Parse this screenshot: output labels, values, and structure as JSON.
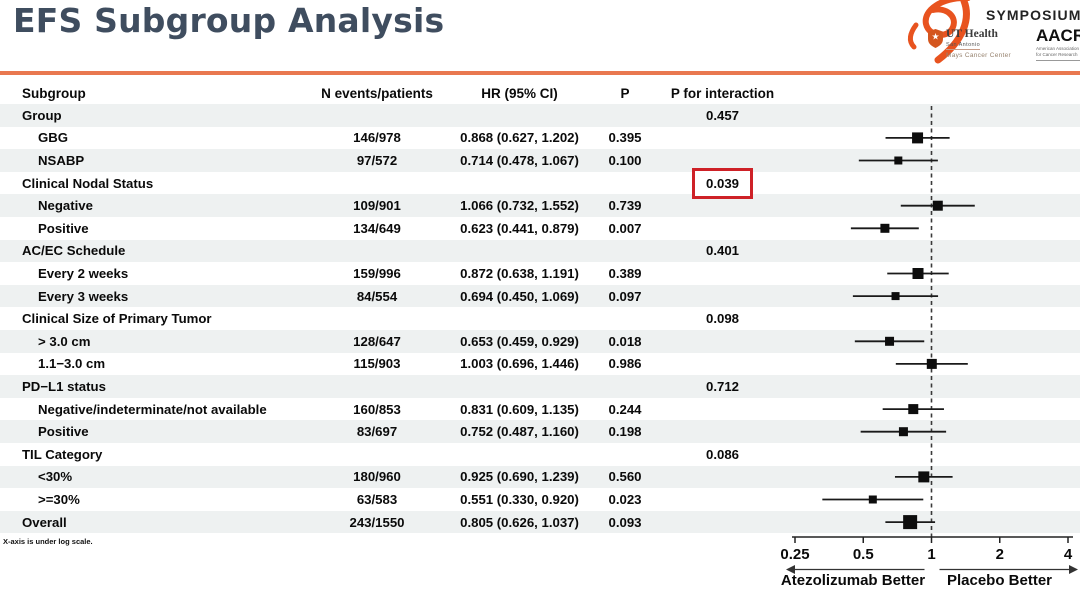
{
  "title": "EFS Subgroup Analysis",
  "footnote": "X-axis is under log scale.",
  "logos": {
    "symposium": "SYMPOSIUM®",
    "ut_health_name": "UT Health",
    "ut_health_city": "San Antonio",
    "ut_health_center": "Mays Cancer Center",
    "aacr_acronym": "AACR",
    "aacr_line1": "American Association",
    "aacr_line2": "for Cancer Research"
  },
  "colors": {
    "accent_orange": "#E97850",
    "title_navy": "#3F4D5F",
    "row_band_gray": "#EEF1F1",
    "highlight_red": "#CE2127",
    "logo_orange": "#E8531F"
  },
  "table": {
    "headers": [
      "Subgroup",
      "N events/patients",
      "HR (95% CI)",
      "P",
      "P for interaction"
    ],
    "rows": [
      {
        "label": "Group",
        "indent": false,
        "n": "",
        "hr_ci": "",
        "p": "",
        "p_int": "0.457",
        "highlight": false
      },
      {
        "label": "GBG",
        "indent": true,
        "n": "146/978",
        "hr_ci": "0.868 (0.627, 1.202)",
        "p": "0.395",
        "p_int": "",
        "highlight": false
      },
      {
        "label": "NSABP",
        "indent": true,
        "n": "97/572",
        "hr_ci": "0.714 (0.478, 1.067)",
        "p": "0.100",
        "p_int": "",
        "highlight": false
      },
      {
        "label": "Clinical Nodal Status",
        "indent": false,
        "n": "",
        "hr_ci": "",
        "p": "",
        "p_int": "0.039",
        "highlight": true
      },
      {
        "label": "Negative",
        "indent": true,
        "n": "109/901",
        "hr_ci": "1.066 (0.732, 1.552)",
        "p": "0.739",
        "p_int": "",
        "highlight": false
      },
      {
        "label": "Positive",
        "indent": true,
        "n": "134/649",
        "hr_ci": "0.623 (0.441, 0.879)",
        "p": "0.007",
        "p_int": "",
        "highlight": false
      },
      {
        "label": "AC/EC Schedule",
        "indent": false,
        "n": "",
        "hr_ci": "",
        "p": "",
        "p_int": "0.401",
        "highlight": false
      },
      {
        "label": "Every 2 weeks",
        "indent": true,
        "n": "159/996",
        "hr_ci": "0.872 (0.638, 1.191)",
        "p": "0.389",
        "p_int": "",
        "highlight": false
      },
      {
        "label": "Every 3 weeks",
        "indent": true,
        "n": "84/554",
        "hr_ci": "0.694 (0.450, 1.069)",
        "p": "0.097",
        "p_int": "",
        "highlight": false
      },
      {
        "label": "Clinical Size of Primary Tumor",
        "indent": false,
        "n": "",
        "hr_ci": "",
        "p": "",
        "p_int": "0.098",
        "highlight": false
      },
      {
        "label": "> 3.0 cm",
        "indent": true,
        "n": "128/647",
        "hr_ci": "0.653 (0.459, 0.929)",
        "p": "0.018",
        "p_int": "",
        "highlight": false
      },
      {
        "label": "1.1−3.0 cm",
        "indent": true,
        "n": "115/903",
        "hr_ci": "1.003 (0.696, 1.446)",
        "p": "0.986",
        "p_int": "",
        "highlight": false
      },
      {
        "label": "PD−L1 status",
        "indent": false,
        "n": "",
        "hr_ci": "",
        "p": "",
        "p_int": "0.712",
        "highlight": false
      },
      {
        "label": "Negative/indeterminate/not available",
        "indent": true,
        "n": "160/853",
        "hr_ci": "0.831 (0.609, 1.135)",
        "p": "0.244",
        "p_int": "",
        "highlight": false
      },
      {
        "label": "Positive",
        "indent": true,
        "n": "83/697",
        "hr_ci": "0.752 (0.487, 1.160)",
        "p": "0.198",
        "p_int": "",
        "highlight": false
      },
      {
        "label": "TIL Category",
        "indent": false,
        "n": "",
        "hr_ci": "",
        "p": "",
        "p_int": "0.086",
        "highlight": false
      },
      {
        "label": "<30%",
        "indent": true,
        "n": "180/960",
        "hr_ci": "0.925 (0.690, 1.239)",
        "p": "0.560",
        "p_int": "",
        "highlight": false
      },
      {
        "label": ">=30%",
        "indent": true,
        "n": "63/583",
        "hr_ci": "0.551 (0.330, 0.920)",
        "p": "0.023",
        "p_int": "",
        "highlight": false
      },
      {
        "label": "Overall",
        "indent": false,
        "n": "243/1550",
        "hr_ci": "0.805 (0.626, 1.037)",
        "p": "0.093",
        "p_int": "",
        "highlight": false
      }
    ]
  },
  "chart_data": {
    "type": "scatter",
    "subtype": "forest-plot",
    "x_scale": "log",
    "x_range": [
      0.25,
      4
    ],
    "x_ticks": [
      "0.25",
      "0.5",
      "1",
      "2",
      "4"
    ],
    "reference_line": 1,
    "left_label": "Atezolizumab Better",
    "right_label": "Placebo Better",
    "points": [
      {
        "row": 1,
        "subgroup": "GBG",
        "hr": 0.868,
        "lo": 0.627,
        "hi": 1.202,
        "patients": 978
      },
      {
        "row": 2,
        "subgroup": "NSABP",
        "hr": 0.714,
        "lo": 0.478,
        "hi": 1.067,
        "patients": 572
      },
      {
        "row": 4,
        "subgroup": "Negative",
        "hr": 1.066,
        "lo": 0.732,
        "hi": 1.552,
        "patients": 901
      },
      {
        "row": 5,
        "subgroup": "Positive",
        "hr": 0.623,
        "lo": 0.441,
        "hi": 0.879,
        "patients": 649
      },
      {
        "row": 7,
        "subgroup": "Every 2 weeks",
        "hr": 0.872,
        "lo": 0.638,
        "hi": 1.191,
        "patients": 996
      },
      {
        "row": 8,
        "subgroup": "Every 3 weeks",
        "hr": 0.694,
        "lo": 0.45,
        "hi": 1.069,
        "patients": 554
      },
      {
        "row": 10,
        "subgroup": "> 3.0 cm",
        "hr": 0.653,
        "lo": 0.459,
        "hi": 0.929,
        "patients": 647
      },
      {
        "row": 11,
        "subgroup": "1.1-3.0 cm",
        "hr": 1.003,
        "lo": 0.696,
        "hi": 1.446,
        "patients": 903
      },
      {
        "row": 13,
        "subgroup": "Negative/indeterminate/not available",
        "hr": 0.831,
        "lo": 0.609,
        "hi": 1.135,
        "patients": 853
      },
      {
        "row": 14,
        "subgroup": "Positive",
        "hr": 0.752,
        "lo": 0.487,
        "hi": 1.16,
        "patients": 697
      },
      {
        "row": 16,
        "subgroup": "<30%",
        "hr": 0.925,
        "lo": 0.69,
        "hi": 1.239,
        "patients": 960
      },
      {
        "row": 17,
        "subgroup": ">=30%",
        "hr": 0.551,
        "lo": 0.33,
        "hi": 0.92,
        "patients": 583
      },
      {
        "row": 18,
        "subgroup": "Overall",
        "hr": 0.805,
        "lo": 0.626,
        "hi": 1.037,
        "patients": 1550
      }
    ]
  }
}
